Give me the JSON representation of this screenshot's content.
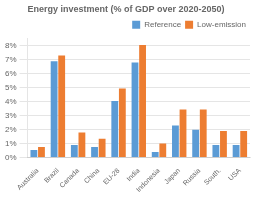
{
  "chart_data": {
    "type": "bar",
    "title": "Energy investment (% of GDP over 2020-2050)",
    "categories": [
      "Australia",
      "Brazil",
      "Canada",
      "China",
      "EU-28",
      "India",
      "Indonesia",
      "Japan",
      "Russia",
      "South.",
      "USA"
    ],
    "series": [
      {
        "name": "Reference",
        "color": "#5b9bd5",
        "values": [
          0.55,
          6.9,
          0.9,
          0.75,
          4.05,
          6.8,
          0.4,
          2.3,
          2.0,
          0.9,
          0.9
        ]
      },
      {
        "name": "Low-emission",
        "color": "#ed7d31",
        "values": [
          0.75,
          7.3,
          1.8,
          1.35,
          4.95,
          8.05,
          1.0,
          3.45,
          3.45,
          1.9,
          1.9
        ]
      }
    ],
    "ylim": [
      0,
      8.5
    ],
    "yticks": [
      {
        "value": 0,
        "label": "0%"
      },
      {
        "value": 1,
        "label": "1%"
      },
      {
        "value": 2,
        "label": "2%"
      },
      {
        "value": 3,
        "label": "3%"
      },
      {
        "value": 4,
        "label": "4%"
      },
      {
        "value": 5,
        "label": "5%"
      },
      {
        "value": 6,
        "label": "6%"
      },
      {
        "value": 7,
        "label": "7%"
      },
      {
        "value": 8,
        "label": "8%"
      }
    ],
    "grid": true,
    "legend": "upper right"
  }
}
